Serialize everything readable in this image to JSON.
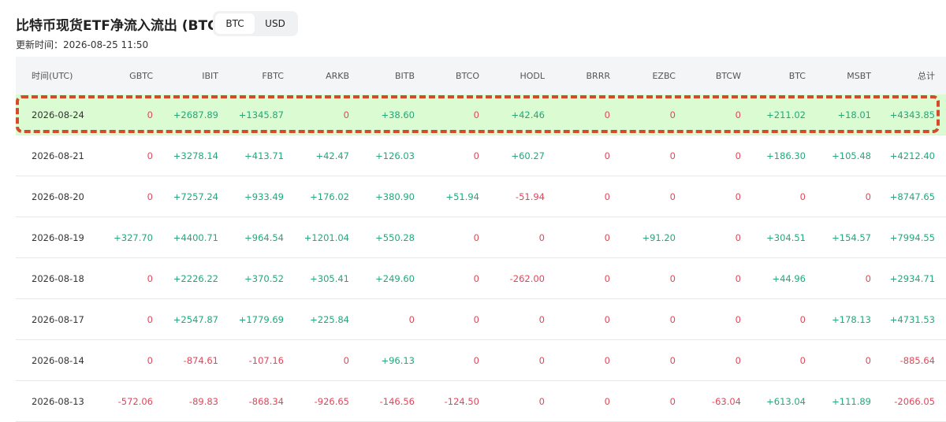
{
  "header": {
    "title": "比特币现货ETF净流入流出 (BTC)",
    "toggle": [
      "BTC",
      "USD"
    ],
    "updated": "更新时间：2026-08-25 11:50"
  },
  "table": {
    "columns": [
      "时间(UTC)",
      "GBTC",
      "IBIT",
      "FBTC",
      "ARKB",
      "BITB",
      "BTCO",
      "HODL",
      "BRRR",
      "EZBC",
      "BTCW",
      "BTC",
      "MSBT",
      "总计"
    ],
    "rows": [
      [
        "2026-08-24",
        "0",
        "+2687.89",
        "+1345.87",
        "0",
        "+38.60",
        "0",
        "+42.46",
        "0",
        "0",
        "0",
        "+211.02",
        "+18.01",
        "+4343.85"
      ],
      [
        "2026-08-21",
        "0",
        "+3278.14",
        "+413.71",
        "+42.47",
        "+126.03",
        "0",
        "+60.27",
        "0",
        "0",
        "0",
        "+186.30",
        "+105.48",
        "+4212.40"
      ],
      [
        "2026-08-20",
        "0",
        "+7257.24",
        "+933.49",
        "+176.02",
        "+380.90",
        "+51.94",
        "-51.94",
        "0",
        "0",
        "0",
        "0",
        "0",
        "+8747.65"
      ],
      [
        "2026-08-19",
        "+327.70",
        "+4400.71",
        "+964.54",
        "+1201.04",
        "+550.28",
        "0",
        "0",
        "0",
        "+91.20",
        "0",
        "+304.51",
        "+154.57",
        "+7994.55"
      ],
      [
        "2026-08-18",
        "0",
        "+2226.22",
        "+370.52",
        "+305.41",
        "+249.60",
        "0",
        "-262.00",
        "0",
        "0",
        "0",
        "+44.96",
        "0",
        "+2934.71"
      ],
      [
        "2026-08-17",
        "0",
        "+2547.87",
        "+1779.69",
        "+225.84",
        "0",
        "0",
        "0",
        "0",
        "0",
        "0",
        "0",
        "+178.13",
        "+4731.53"
      ],
      [
        "2026-08-14",
        "0",
        "-874.61",
        "-107.16",
        "0",
        "+96.13",
        "0",
        "0",
        "0",
        "0",
        "0",
        "0",
        "0",
        "-885.64"
      ],
      [
        "2026-08-13",
        "-572.06",
        "-89.83",
        "-868.34",
        "-926.65",
        "-146.56",
        "-124.50",
        "0",
        "0",
        "0",
        "-63.04",
        "+613.04",
        "+111.89",
        "-2066.05"
      ]
    ]
  }
}
